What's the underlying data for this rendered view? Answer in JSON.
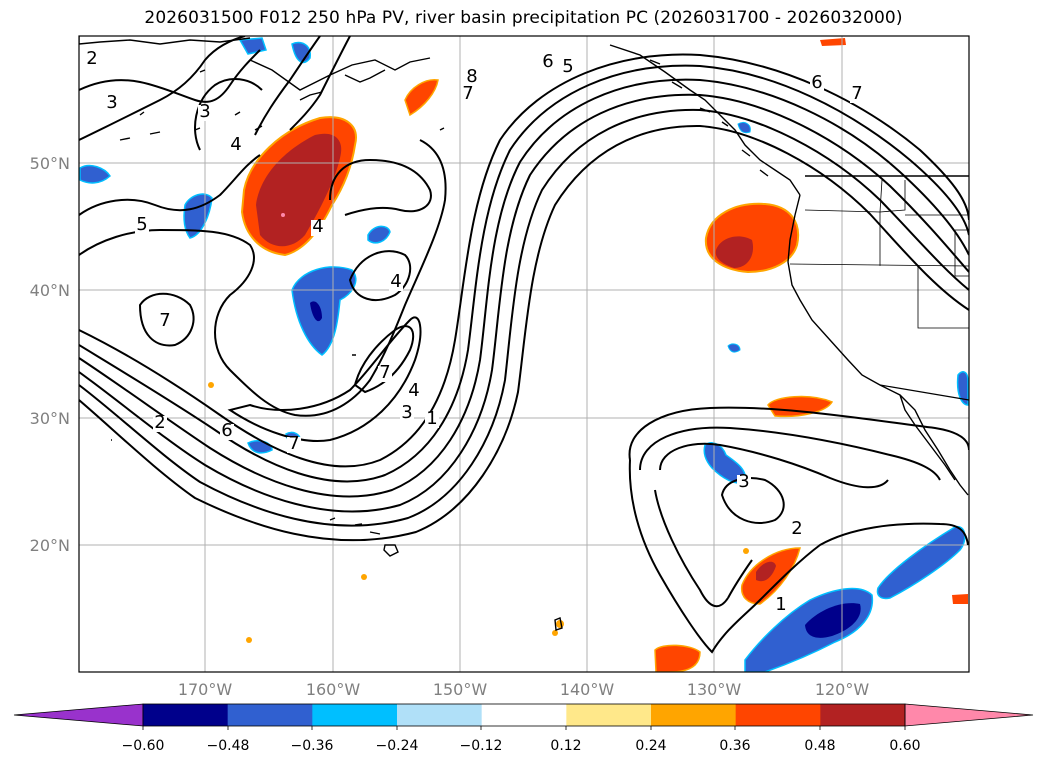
{
  "title": "2026031500 F012 250 hPa PV, river basin precipitation PC (2026031700 - 2026032000)",
  "lat_labels": [
    "50°N",
    "40°N",
    "30°N",
    "20°N"
  ],
  "lon_labels": [
    "170°W",
    "160°W",
    "150°W",
    "140°W",
    "130°W",
    "120°W"
  ],
  "contour_labels": [
    "2",
    "3",
    "3",
    "4",
    "5",
    "4",
    "4",
    "7",
    "7",
    "2",
    "6",
    "7",
    "3",
    "4",
    "1",
    "8",
    "7",
    "6",
    "5",
    "6",
    "7",
    "2",
    "1",
    "3"
  ],
  "colorbar": {
    "ticks": [
      "−0.60",
      "−0.48",
      "−0.36",
      "−0.24",
      "−0.12",
      "0.12",
      "0.24",
      "0.36",
      "0.48",
      "0.60"
    ],
    "colors": [
      "#9932cc",
      "#00008b",
      "#3060d0",
      "#00bfff",
      "#b0e0f8",
      "#ffffff",
      "#ffe88a",
      "#ffa500",
      "#ff4500",
      "#b22222",
      "#ff88aa"
    ]
  },
  "colors": {
    "land_line": "#000000",
    "grid": "#b0b0b0",
    "contour": "#000000"
  }
}
